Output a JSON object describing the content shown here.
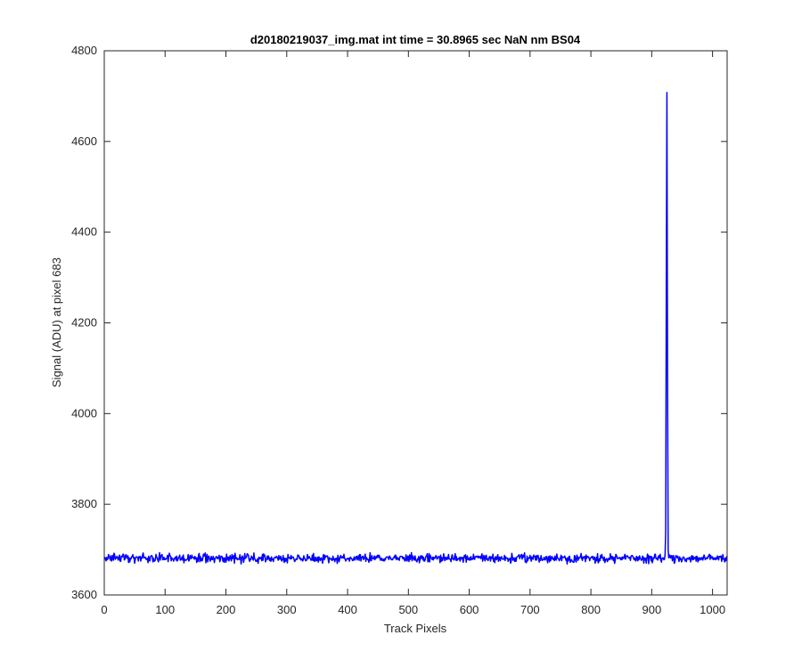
{
  "chart_data": {
    "type": "line",
    "title": "d20180219037_img.mat int time = 30.8965 sec  NaN nm BS04",
    "xlabel": "Track Pixels",
    "ylabel": "Signal (ADU) at pixel 683",
    "xlim": [
      0,
      1024
    ],
    "ylim": [
      3600,
      4800
    ],
    "xticks": [
      0,
      100,
      200,
      300,
      400,
      500,
      600,
      700,
      800,
      900,
      1000
    ],
    "yticks": [
      3600,
      3800,
      4000,
      4200,
      4400,
      4600,
      4800
    ],
    "grid": false,
    "legend": "none",
    "series": [
      {
        "color": "#0000ff",
        "baseline": 3681,
        "noise_amplitude": 9,
        "x_range": [
          1,
          1024
        ],
        "peaks": [
          {
            "x": 922,
            "y": 3690
          },
          {
            "x": 923,
            "y": 3740
          },
          {
            "x": 924,
            "y": 4300
          },
          {
            "x": 925,
            "y": 4708
          },
          {
            "x": 926,
            "y": 4100
          },
          {
            "x": 927,
            "y": 3700
          }
        ]
      }
    ]
  }
}
